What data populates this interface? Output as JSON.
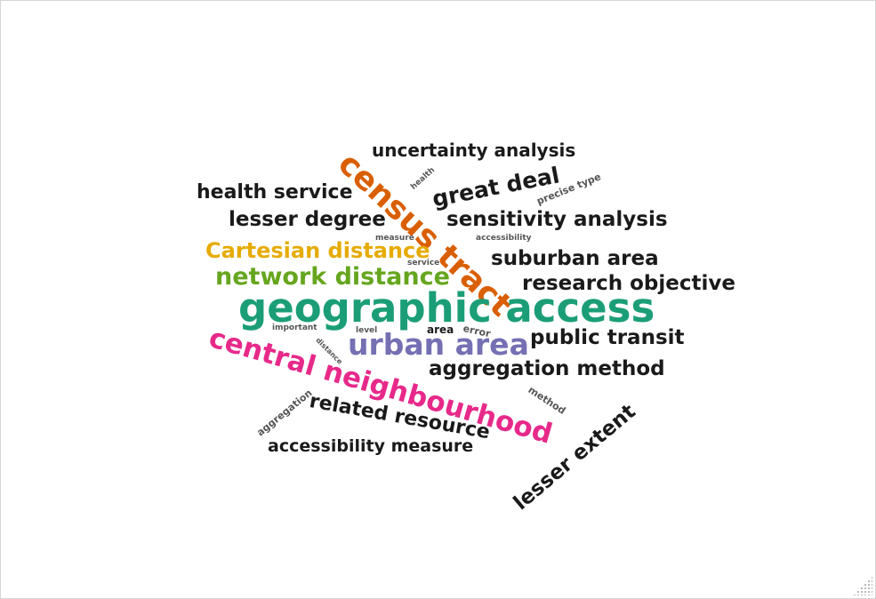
{
  "palette": {
    "orange": "#d95f02",
    "teal": "#1b9e77",
    "purple": "#7570b3",
    "pink": "#e7298a",
    "green": "#66a61e",
    "gold": "#e6ab02",
    "black": "#1a1a1a",
    "gray": "#555555"
  },
  "words": [
    {
      "id": "uncertainty-analysis",
      "text": "uncertainty analysis"
    },
    {
      "id": "census-tract",
      "text": "census tract"
    },
    {
      "id": "great-deal",
      "text": "great deal"
    },
    {
      "id": "health-small",
      "text": "health"
    },
    {
      "id": "precise-type",
      "text": "precise type"
    },
    {
      "id": "health-service",
      "text": "health service"
    },
    {
      "id": "lesser-degree",
      "text": "lesser degree"
    },
    {
      "id": "sensitivity-analysis",
      "text": "sensitivity analysis"
    },
    {
      "id": "measure-small",
      "text": "measure"
    },
    {
      "id": "accessibility-small",
      "text": "accessibility"
    },
    {
      "id": "cartesian-distance",
      "text": "Cartesian distance"
    },
    {
      "id": "suburban-area",
      "text": "suburban area"
    },
    {
      "id": "service-small",
      "text": "service"
    },
    {
      "id": "network-distance",
      "text": "network distance"
    },
    {
      "id": "research-objective",
      "text": "research objective"
    },
    {
      "id": "geographic-access",
      "text": "geographic access"
    },
    {
      "id": "important-small",
      "text": "important"
    },
    {
      "id": "level-small",
      "text": "level"
    },
    {
      "id": "area-small",
      "text": "area"
    },
    {
      "id": "error-small",
      "text": "error"
    },
    {
      "id": "urban-area",
      "text": "urban area"
    },
    {
      "id": "public-transit",
      "text": "public transit"
    },
    {
      "id": "distance-small",
      "text": "distance"
    },
    {
      "id": "central-neighbourhood",
      "text": "central neighbourhood"
    },
    {
      "id": "aggregation-method",
      "text": "aggregation method"
    },
    {
      "id": "method-small",
      "text": "method"
    },
    {
      "id": "aggregation-small",
      "text": "aggregation"
    },
    {
      "id": "related-resource",
      "text": "related resource"
    },
    {
      "id": "lesser-extent",
      "text": "lesser extent"
    },
    {
      "id": "accessibility-measure",
      "text": "accessibility measure"
    }
  ]
}
